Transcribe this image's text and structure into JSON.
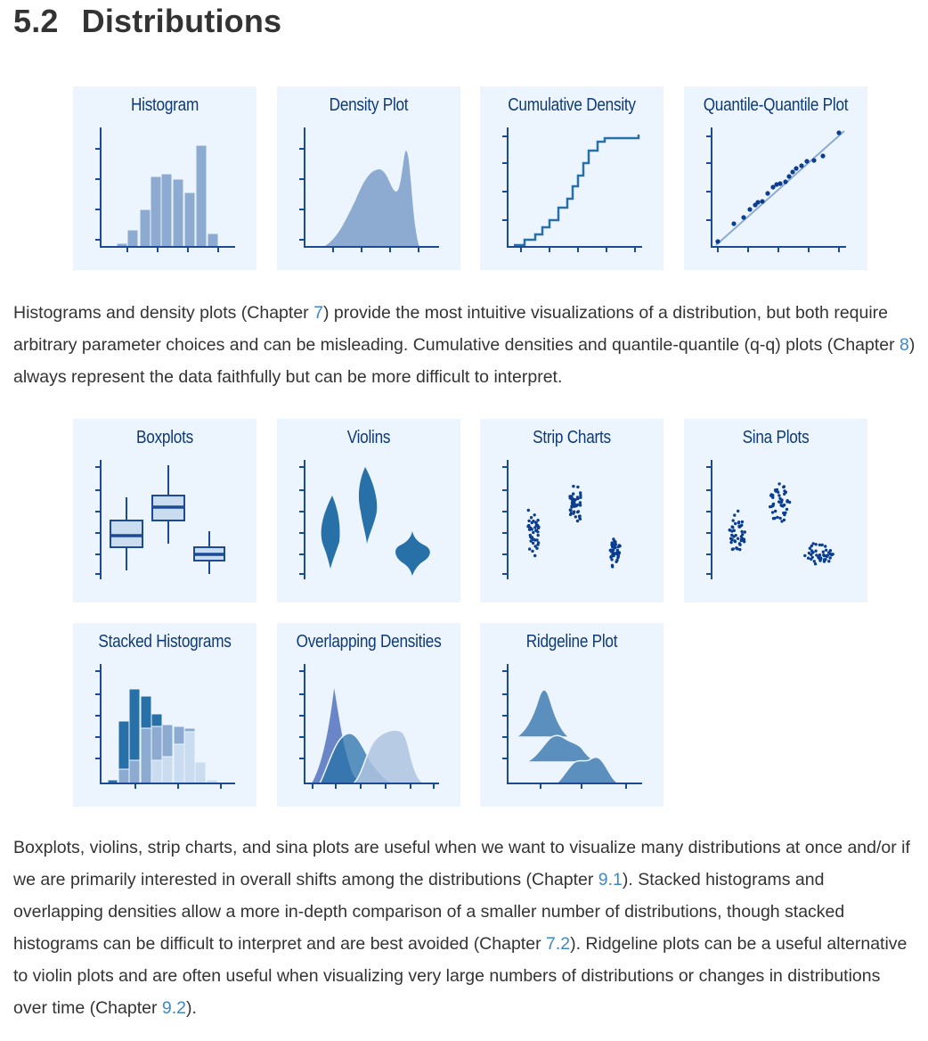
{
  "heading": {
    "number": "5.2",
    "text": "Distributions"
  },
  "colors": {
    "axis": "#1c4a96",
    "fill_light": "#8dabd0",
    "fill_mid": "#2870a8",
    "point": "#0b3d91",
    "tile_bg": "#ecf5fd",
    "link": "#3f87c6"
  },
  "tiles": {
    "histogram": "Histogram",
    "density": "Density Plot",
    "cumulative": "Cumulative Density",
    "qq": "Quantile-Quantile Plot",
    "boxplots": "Boxplots",
    "violins": "Violins",
    "strip": "Strip Charts",
    "sina": "Sina Plots",
    "stacked": "Stacked Histograms",
    "overlap": "Overlapping Densities",
    "ridgeline": "Ridgeline Plot"
  },
  "para1": {
    "t1": "Histograms and density plots (Chapter ",
    "link1": "7",
    "t2": ") provide the most intuitive visualizations of a distribution, but both require arbitrary parameter choices and can be misleading. Cumulative densities and quantile-quantile (q-q) plots (Chapter ",
    "link2": "8",
    "t3": ") always represent the data faithfully but can be more difficult to interpret."
  },
  "para2": {
    "t1": "Boxplots, violins, strip charts, and sina plots are useful when we want to visualize many distributions at once and/or if we are primarily interested in overall shifts among the distributions (Chapter ",
    "link1": "9.1",
    "t2": "). Stacked histograms and overlapping densities allow a more in-depth comparison of a smaller number of distributions, though stacked histograms can be difficult to interpret and are best avoided (Chapter ",
    "link2": "7.2",
    "t3": "). Ridgeline plots can be a useful alternative to violin plots and are often useful when visualizing very large numbers of distributions or changes in distributions over time (Chapter ",
    "link3": "9.2",
    "t4": ")."
  }
}
